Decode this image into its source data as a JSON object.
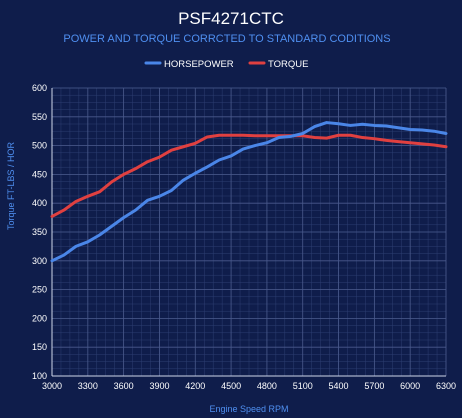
{
  "chart_data": {
    "type": "line",
    "title": "PSF4271CTC",
    "subtitle": "POWER AND TORQUE CORRCTED TO STANDARD CODITIONS",
    "xlabel": "Engine Speed RPM",
    "ylabel": "Torque FT-LBS / HOR",
    "xlim": [
      3000,
      6300
    ],
    "ylim": [
      100,
      600
    ],
    "x_ticks": [
      3000,
      3300,
      3600,
      3900,
      4200,
      4500,
      4800,
      5100,
      5400,
      5700,
      6000,
      6300
    ],
    "y_ticks": [
      100,
      150,
      200,
      250,
      300,
      350,
      400,
      450,
      500,
      550,
      600
    ],
    "grid": true,
    "legend_position": "top",
    "series": [
      {
        "name": "HORSEPOWER",
        "color": "#4a86e8",
        "points": [
          [
            3000,
            300
          ],
          [
            3100,
            310
          ],
          [
            3200,
            325
          ],
          [
            3300,
            333
          ],
          [
            3400,
            345
          ],
          [
            3500,
            360
          ],
          [
            3600,
            375
          ],
          [
            3700,
            388
          ],
          [
            3800,
            405
          ],
          [
            3900,
            412
          ],
          [
            4000,
            422
          ],
          [
            4100,
            440
          ],
          [
            4200,
            452
          ],
          [
            4300,
            463
          ],
          [
            4400,
            475
          ],
          [
            4500,
            482
          ],
          [
            4600,
            494
          ],
          [
            4700,
            500
          ],
          [
            4800,
            505
          ],
          [
            4900,
            514
          ],
          [
            5000,
            516
          ],
          [
            5100,
            521
          ],
          [
            5200,
            533
          ],
          [
            5300,
            540
          ],
          [
            5400,
            538
          ],
          [
            5500,
            535
          ],
          [
            5600,
            537
          ],
          [
            5700,
            535
          ],
          [
            5800,
            534
          ],
          [
            5900,
            531
          ],
          [
            6000,
            528
          ],
          [
            6100,
            527
          ],
          [
            6200,
            525
          ],
          [
            6300,
            521
          ]
        ]
      },
      {
        "name": "TORQUE",
        "color": "#e04040",
        "points": [
          [
            3000,
            377
          ],
          [
            3100,
            388
          ],
          [
            3200,
            403
          ],
          [
            3300,
            412
          ],
          [
            3400,
            420
          ],
          [
            3500,
            437
          ],
          [
            3600,
            450
          ],
          [
            3700,
            460
          ],
          [
            3800,
            472
          ],
          [
            3900,
            480
          ],
          [
            4000,
            492
          ],
          [
            4100,
            498
          ],
          [
            4200,
            504
          ],
          [
            4300,
            515
          ],
          [
            4400,
            518
          ],
          [
            4500,
            518
          ],
          [
            4600,
            518
          ],
          [
            4700,
            517
          ],
          [
            4800,
            517
          ],
          [
            4900,
            517
          ],
          [
            5000,
            517
          ],
          [
            5100,
            517
          ],
          [
            5200,
            514
          ],
          [
            5300,
            513
          ],
          [
            5400,
            518
          ],
          [
            5500,
            518
          ],
          [
            5600,
            514
          ],
          [
            5700,
            512
          ],
          [
            5800,
            509
          ],
          [
            5900,
            507
          ],
          [
            6000,
            505
          ],
          [
            6100,
            503
          ],
          [
            6200,
            501
          ],
          [
            6300,
            498
          ]
        ]
      }
    ]
  }
}
